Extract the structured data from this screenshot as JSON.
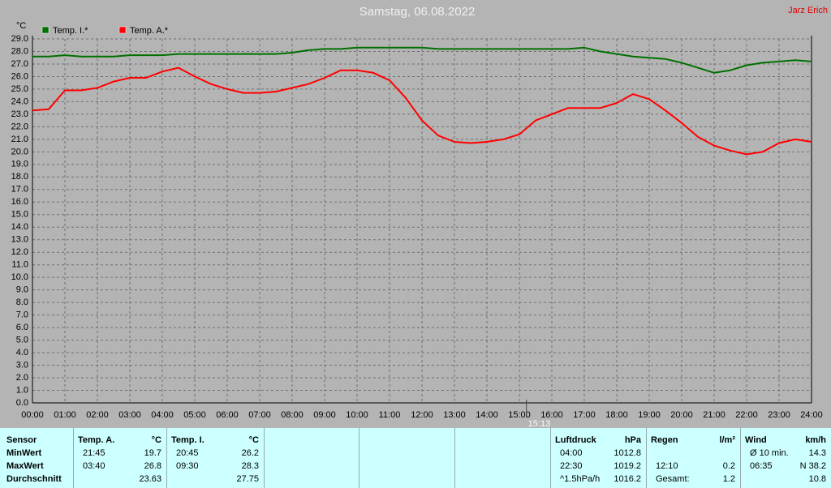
{
  "chart_data": {
    "type": "line",
    "title": "Samstag, 06.08.2022",
    "author": "Jarz Erich",
    "y_unit": "°C",
    "legend": "top-left",
    "grid": true,
    "x": [
      0,
      0.5,
      1,
      1.5,
      2,
      2.5,
      3,
      3.5,
      4,
      4.5,
      5,
      5.5,
      6,
      6.5,
      7,
      7.5,
      8,
      8.5,
      9,
      9.5,
      10,
      10.5,
      11,
      11.5,
      12,
      12.5,
      13,
      13.5,
      14,
      14.5,
      15,
      15.5,
      16,
      16.5,
      17,
      17.5,
      18,
      18.5,
      19,
      19.5,
      20,
      20.5,
      21,
      21.5,
      22,
      22.5,
      23,
      23.5,
      24
    ],
    "series": [
      {
        "name": "Temp. I.*",
        "color": "#007000",
        "values": [
          27.6,
          27.6,
          27.7,
          27.6,
          27.6,
          27.6,
          27.7,
          27.7,
          27.7,
          27.8,
          27.8,
          27.8,
          27.8,
          27.8,
          27.8,
          27.8,
          27.9,
          28.1,
          28.2,
          28.2,
          28.3,
          28.3,
          28.3,
          28.3,
          28.3,
          28.2,
          28.2,
          28.2,
          28.2,
          28.2,
          28.2,
          28.2,
          28.2,
          28.2,
          28.3,
          28.0,
          27.8,
          27.6,
          27.5,
          27.4,
          27.1,
          26.7,
          26.3,
          26.5,
          26.9,
          27.1,
          27.2,
          27.3,
          27.2
        ]
      },
      {
        "name": "Temp. A.*",
        "color": "#ff0000",
        "values": [
          23.3,
          23.4,
          24.9,
          24.9,
          25.1,
          25.6,
          25.9,
          25.9,
          26.4,
          26.7,
          26.0,
          25.4,
          25.0,
          24.7,
          24.7,
          24.8,
          25.1,
          25.4,
          25.9,
          26.5,
          26.5,
          26.3,
          25.7,
          24.3,
          22.5,
          21.3,
          20.8,
          20.7,
          20.8,
          21.0,
          21.4,
          22.5,
          23.0,
          23.5,
          23.5,
          23.5,
          23.9,
          24.6,
          24.2,
          23.3,
          22.3,
          21.2,
          20.5,
          20.1,
          19.8,
          20.0,
          20.7,
          21.0,
          20.8
        ]
      }
    ],
    "xlim": [
      0,
      24
    ],
    "xticks": [
      {
        "value": 0,
        "label": "00:00"
      },
      {
        "value": 1,
        "label": "01:00"
      },
      {
        "value": 2,
        "label": "02:00"
      },
      {
        "value": 3,
        "label": "03:00"
      },
      {
        "value": 4,
        "label": "04:00"
      },
      {
        "value": 5,
        "label": "05:00"
      },
      {
        "value": 6,
        "label": "06:00"
      },
      {
        "value": 7,
        "label": "07:00"
      },
      {
        "value": 8,
        "label": "08:00"
      },
      {
        "value": 9,
        "label": "09:00"
      },
      {
        "value": 10,
        "label": "10:00"
      },
      {
        "value": 11,
        "label": "11:00"
      },
      {
        "value": 12,
        "label": "12:00"
      },
      {
        "value": 13,
        "label": "13:00"
      },
      {
        "value": 14,
        "label": "14:00"
      },
      {
        "value": 15,
        "label": "15:00"
      },
      {
        "value": 16,
        "label": "16:00"
      },
      {
        "value": 17,
        "label": "17:00"
      },
      {
        "value": 18,
        "label": "18:00"
      },
      {
        "value": 19,
        "label": "19:00"
      },
      {
        "value": 20,
        "label": "20:00"
      },
      {
        "value": 21,
        "label": "21:00"
      },
      {
        "value": 22,
        "label": "22:00"
      },
      {
        "value": 23,
        "label": "23:00"
      },
      {
        "value": 24,
        "label": "24:00"
      }
    ],
    "ylim": [
      0,
      29
    ],
    "yticks": [
      {
        "value": 0,
        "label": "0.0"
      },
      {
        "value": 1,
        "label": "1.0"
      },
      {
        "value": 2,
        "label": "2.0"
      },
      {
        "value": 3,
        "label": "3.0"
      },
      {
        "value": 4,
        "label": "4.0"
      },
      {
        "value": 5,
        "label": "5.0"
      },
      {
        "value": 6,
        "label": "6.0"
      },
      {
        "value": 7,
        "label": "7.0"
      },
      {
        "value": 8,
        "label": "8.0"
      },
      {
        "value": 9,
        "label": "9.0"
      },
      {
        "value": 10,
        "label": "10.0"
      },
      {
        "value": 11,
        "label": "11.0"
      },
      {
        "value": 12,
        "label": "12.0"
      },
      {
        "value": 13,
        "label": "13.0"
      },
      {
        "value": 14,
        "label": "14.0"
      },
      {
        "value": 15,
        "label": "15.0"
      },
      {
        "value": 16,
        "label": "16.0"
      },
      {
        "value": 17,
        "label": "17.0"
      },
      {
        "value": 18,
        "label": "18.0"
      },
      {
        "value": 19,
        "label": "19.0"
      },
      {
        "value": 20,
        "label": "20.0"
      },
      {
        "value": 21,
        "label": "21.0"
      },
      {
        "value": 22,
        "label": "22.0"
      },
      {
        "value": 23,
        "label": "23.0"
      },
      {
        "value": 24,
        "label": "24.0"
      },
      {
        "value": 25,
        "label": "25.0"
      },
      {
        "value": 26,
        "label": "26.0"
      },
      {
        "value": 27,
        "label": "27.0"
      },
      {
        "value": 28,
        "label": "28.0"
      },
      {
        "value": 29,
        "label": "29.0"
      }
    ],
    "marker": {
      "x": 15.2167,
      "label": "15:13"
    }
  },
  "stats_table": {
    "row_labels": [
      "Sensor",
      "MinWert",
      "MaxWert",
      "Durchschnitt"
    ],
    "columns": [
      {
        "header": "Temp. A.",
        "unit": "°C",
        "rows": [
          [
            "21:45",
            "19.7"
          ],
          [
            "03:40",
            "26.8"
          ],
          [
            null,
            "23.63"
          ]
        ]
      },
      {
        "header": "Temp. I.",
        "unit": "°C",
        "rows": [
          [
            "20:45",
            "26.2"
          ],
          [
            "09:30",
            "28.3"
          ],
          [
            null,
            "27.75"
          ]
        ]
      },
      {
        "header": "Luftdruck",
        "unit": "hPa",
        "rows": [
          [
            "04:00",
            "1012.8"
          ],
          [
            "22:30",
            "1019.2"
          ],
          [
            "^1.5hPa/h",
            "1016.2"
          ]
        ]
      },
      {
        "header": "Regen",
        "unit": "l/m²",
        "rows": [
          [
            null,
            null
          ],
          [
            "12:10",
            "0.2"
          ],
          [
            "Gesamt:",
            "1.2"
          ]
        ]
      },
      {
        "header": "Wind",
        "unit": "km/h",
        "rows": [
          [
            "Ø 10 min.",
            "14.3"
          ],
          [
            "06:35",
            "N 38.2"
          ],
          [
            null,
            "10.8"
          ]
        ]
      }
    ]
  }
}
